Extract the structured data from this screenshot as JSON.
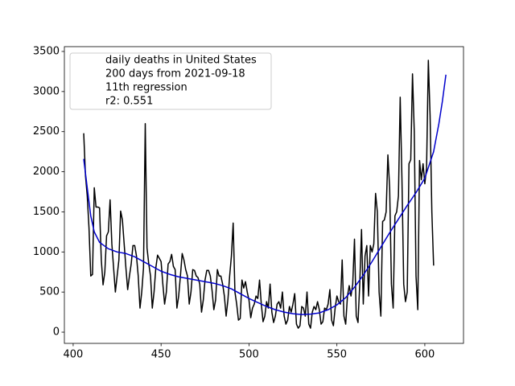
{
  "chart_data": {
    "type": "line",
    "legend": [
      "daily deaths in United States",
      "200 days from 2021-09-18",
      "11th regression",
      "r2: 0.551"
    ],
    "legend_position": "upper left",
    "xlim": [
      395,
      622
    ],
    "xticks": [
      400,
      450,
      500,
      550,
      600
    ],
    "ylim": [
      -140,
      3560
    ],
    "yticks": [
      0,
      500,
      1000,
      1500,
      2000,
      2500,
      3000,
      3500
    ],
    "grid": false,
    "series": [
      {
        "color": "#000000",
        "x": [
          406,
          407,
          408,
          409,
          410,
          411,
          412,
          413,
          414,
          415,
          416,
          417,
          418,
          419,
          420,
          421,
          422,
          423,
          424,
          425,
          426,
          427,
          428,
          429,
          430,
          431,
          432,
          433,
          434,
          435,
          436,
          437,
          438,
          439,
          440,
          441,
          442,
          443,
          444,
          445,
          446,
          447,
          448,
          449,
          450,
          451,
          452,
          453,
          454,
          455,
          456,
          457,
          458,
          459,
          460,
          461,
          462,
          463,
          464,
          465,
          466,
          467,
          468,
          469,
          470,
          471,
          472,
          473,
          474,
          475,
          476,
          477,
          478,
          479,
          480,
          481,
          482,
          483,
          484,
          485,
          486,
          487,
          488,
          489,
          490,
          491,
          492,
          493,
          494,
          495,
          496,
          497,
          498,
          499,
          500,
          501,
          502,
          503,
          504,
          505,
          506,
          507,
          508,
          509,
          510,
          511,
          512,
          513,
          514,
          515,
          516,
          517,
          518,
          519,
          520,
          521,
          522,
          523,
          524,
          525,
          526,
          527,
          528,
          529,
          530,
          531,
          532,
          533,
          534,
          535,
          536,
          537,
          538,
          539,
          540,
          541,
          542,
          543,
          544,
          545,
          546,
          547,
          548,
          549,
          550,
          551,
          552,
          553,
          554,
          555,
          556,
          557,
          558,
          559,
          560,
          561,
          562,
          563,
          564,
          565,
          566,
          567,
          568,
          569,
          570,
          571,
          572,
          573,
          574,
          575,
          576,
          577,
          578,
          579,
          580,
          581,
          582,
          583,
          584,
          585,
          586,
          587,
          588,
          589,
          590,
          591,
          592,
          593,
          594,
          595,
          596,
          597,
          598,
          599,
          600,
          601,
          602,
          603,
          604,
          605
        ],
        "values": [
          2480,
          1950,
          1700,
          1300,
          700,
          720,
          1800,
          1560,
          1560,
          1550,
          900,
          590,
          750,
          1200,
          1250,
          1650,
          1100,
          800,
          500,
          700,
          900,
          1510,
          1400,
          1100,
          800,
          530,
          700,
          850,
          1080,
          1080,
          950,
          700,
          300,
          500,
          800,
          2600,
          1050,
          850,
          700,
          300,
          500,
          800,
          960,
          920,
          880,
          600,
          350,
          500,
          850,
          880,
          970,
          820,
          780,
          300,
          450,
          700,
          980,
          900,
          780,
          700,
          350,
          500,
          780,
          770,
          700,
          680,
          600,
          250,
          400,
          650,
          770,
          770,
          700,
          520,
          280,
          400,
          780,
          700,
          700,
          600,
          450,
          200,
          400,
          700,
          950,
          1360,
          500,
          350,
          150,
          170,
          650,
          550,
          630,
          500,
          400,
          180,
          300,
          350,
          450,
          420,
          650,
          350,
          130,
          200,
          380,
          300,
          600,
          250,
          120,
          200,
          350,
          380,
          300,
          500,
          200,
          100,
          150,
          320,
          250,
          350,
          480,
          100,
          50,
          80,
          320,
          300,
          200,
          500,
          100,
          50,
          250,
          320,
          280,
          380,
          280,
          100,
          130,
          300,
          280,
          350,
          530,
          150,
          80,
          300,
          450,
          380,
          350,
          900,
          200,
          100,
          450,
          580,
          450,
          600,
          1160,
          200,
          120,
          600,
          1280,
          350,
          950,
          1080,
          450,
          1080,
          1000,
          1100,
          1730,
          1500,
          500,
          200,
          1380,
          1400,
          1500,
          2210,
          1800,
          600,
          300,
          1450,
          1500,
          1700,
          2930,
          1900,
          600,
          380,
          500,
          2100,
          2150,
          3220,
          2500,
          700,
          280,
          2140,
          1900,
          2100,
          1850,
          2050,
          3390,
          2700,
          1500,
          830
        ]
      },
      {
        "color": "#0000cc",
        "x": [
          406,
          408,
          410,
          412,
          415,
          420,
          425,
          430,
          435,
          440,
          445,
          450,
          455,
          460,
          465,
          470,
          475,
          480,
          485,
          490,
          495,
          500,
          505,
          510,
          515,
          520,
          525,
          530,
          535,
          540,
          545,
          550,
          555,
          560,
          565,
          570,
          575,
          580,
          585,
          590,
          595,
          600,
          605,
          608,
          610,
          612
        ],
        "values": [
          2160,
          1800,
          1450,
          1250,
          1120,
          1040,
          1000,
          980,
          940,
          880,
          820,
          760,
          720,
          690,
          670,
          650,
          630,
          610,
          580,
          540,
          480,
          420,
          370,
          320,
          280,
          250,
          230,
          220,
          225,
          240,
          280,
          340,
          430,
          560,
          710,
          880,
          1060,
          1240,
          1410,
          1580,
          1740,
          1920,
          2250,
          2600,
          2880,
          3210
        ]
      }
    ]
  }
}
